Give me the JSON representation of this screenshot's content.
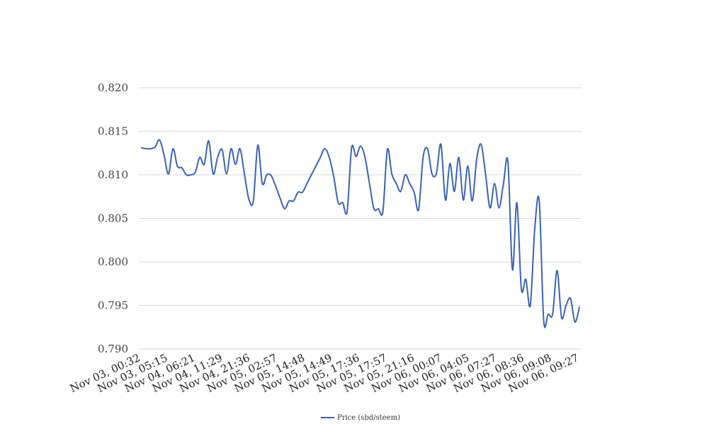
{
  "chart_data": {
    "type": "line",
    "title": "",
    "xlabel": "",
    "ylabel": "",
    "ylim": [
      0.79,
      0.82
    ],
    "y_ticks": [
      "0.790",
      "0.795",
      "0.800",
      "0.805",
      "0.810",
      "0.815",
      "0.820"
    ],
    "x_tick_labels": [
      "Nov 03, 00:32",
      "Nov 03, 05:15",
      "Nov 04, 06:21",
      "Nov 04, 11:29",
      "Nov 04, 21:36",
      "Nov 05, 02:57",
      "Nov 05, 14:48",
      "Nov 05, 14:49",
      "Nov 05, 17:36",
      "Nov 05, 17:57",
      "Nov 05, 21:16",
      "Nov 06, 00:07",
      "Nov 06, 04:05",
      "Nov 06, 07:27",
      "Nov 06, 08:36",
      "Nov 06, 09:08",
      "Nov 06, 09:27"
    ],
    "grid": true,
    "legend_position": "bottom",
    "series": [
      {
        "name": "Price (sbd/steem)",
        "color": "#3a63b8",
        "values": [
          0.8131,
          0.813,
          0.813,
          0.8132,
          0.814,
          0.8123,
          0.8101,
          0.813,
          0.811,
          0.8108,
          0.81,
          0.81,
          0.8103,
          0.812,
          0.8112,
          0.8139,
          0.8101,
          0.812,
          0.8129,
          0.8101,
          0.813,
          0.8112,
          0.813,
          0.8101,
          0.8072,
          0.807,
          0.8134,
          0.809,
          0.81,
          0.8099,
          0.8087,
          0.8073,
          0.8061,
          0.807,
          0.807,
          0.808,
          0.808,
          0.809,
          0.81,
          0.811,
          0.812,
          0.813,
          0.812,
          0.8098,
          0.8068,
          0.8068,
          0.8058,
          0.8131,
          0.8121,
          0.8133,
          0.812,
          0.809,
          0.8061,
          0.8061,
          0.8058,
          0.8129,
          0.8101,
          0.809,
          0.8081,
          0.81,
          0.809,
          0.808,
          0.806,
          0.812,
          0.813,
          0.8101,
          0.8102,
          0.8135,
          0.8071,
          0.8113,
          0.8081,
          0.812,
          0.8071,
          0.811,
          0.807,
          0.8118,
          0.8135,
          0.81,
          0.8062,
          0.809,
          0.8062,
          0.809,
          0.8115,
          0.7991,
          0.8068,
          0.7969,
          0.798,
          0.795,
          0.8038,
          0.807,
          0.7933,
          0.794,
          0.794,
          0.799,
          0.7936,
          0.795,
          0.7958,
          0.7931,
          0.7948
        ]
      }
    ]
  }
}
